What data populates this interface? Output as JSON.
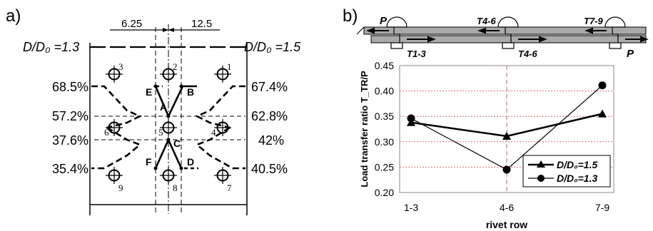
{
  "panel_a": {
    "panel_label": "a)",
    "left_ratio": "D/D₀ =1.3",
    "right_ratio": "D/D₀ =1.5",
    "dim_left": "6.25",
    "dim_right": "12.5",
    "left_percents": [
      "68.5%",
      "57.2%",
      "37.6%",
      "35.4%"
    ],
    "right_percents": [
      "67.4%",
      "62.8%",
      "42%",
      "40.5%"
    ],
    "hole_numbers": [
      "1",
      "2",
      "3",
      "4",
      "5",
      "6",
      "7",
      "8",
      "9"
    ],
    "point_letters": [
      "A",
      "B",
      "C",
      "D",
      "E",
      "F"
    ]
  },
  "panel_b": {
    "panel_label": "b)",
    "force_p": "P",
    "t46": "T4-6",
    "t79": "T7-9",
    "t13": "T1-3",
    "t46b": "T4-6"
  },
  "chart_data": {
    "type": "line",
    "categories": [
      "1-3",
      "4-6",
      "7-9"
    ],
    "xlabel": "rivet row",
    "ylabel": "Load transfer ratio T_TR/P",
    "ylim": [
      0.2,
      0.45
    ],
    "yticks": [
      "0.20",
      "0.25",
      "0.30",
      "0.35",
      "0.40",
      "0.45"
    ],
    "grid": "horizontal dotted red lines, dashed vertical at 4-6",
    "legend_position": "bottom-right",
    "series": [
      {
        "name": "D/D₀=1.5",
        "marker": "triangle",
        "values": [
          0.338,
          0.311,
          0.355
        ],
        "color": "#000000"
      },
      {
        "name": "D/D₀=1.3",
        "marker": "circle",
        "values": [
          0.346,
          0.245,
          0.411
        ],
        "color": "#000000"
      }
    ]
  }
}
